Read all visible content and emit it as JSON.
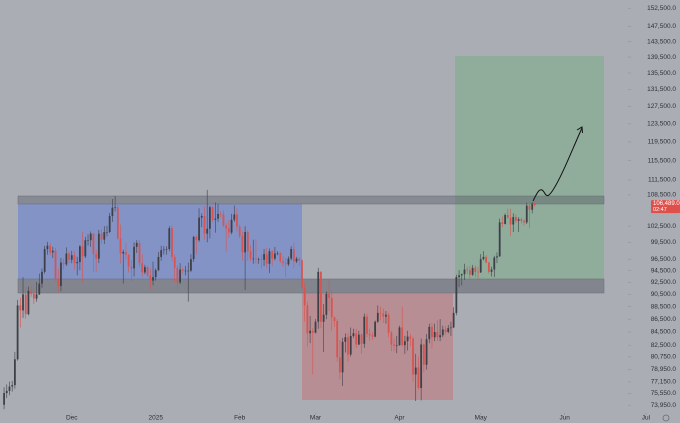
{
  "chart_data": {
    "type": "candlestick",
    "log_scale": true,
    "grid": false,
    "up_color": "#3e4048",
    "down_color": "#d9534f",
    "xlim": [
      -1.5,
      238.5
    ],
    "xticks": [
      {
        "value": 25,
        "label": "Dec"
      },
      {
        "value": 56,
        "label": "2025"
      },
      {
        "value": 87,
        "label": "Feb"
      },
      {
        "value": 115,
        "label": "Mar"
      },
      {
        "value": 146,
        "label": "Apr"
      },
      {
        "value": 176,
        "label": "May"
      },
      {
        "value": 207,
        "label": "Jun"
      },
      {
        "value": 237,
        "label": "Jul"
      }
    ],
    "ylim": [
      72900,
      154800
    ],
    "yticks": [
      {
        "value": 152500,
        "label": "152,500.0"
      },
      {
        "value": 147500,
        "label": "147,500.0"
      },
      {
        "value": 143500,
        "label": "143,500.0"
      },
      {
        "value": 139500,
        "label": "139,500.0"
      },
      {
        "value": 135500,
        "label": "135,500.0"
      },
      {
        "value": 131500,
        "label": "131,500.0"
      },
      {
        "value": 127500,
        "label": "127,500.0"
      },
      {
        "value": 123500,
        "label": "123,500.0"
      },
      {
        "value": 119500,
        "label": "119,500.0"
      },
      {
        "value": 115500,
        "label": "115,500.0"
      },
      {
        "value": 111500,
        "label": "111,500.0"
      },
      {
        "value": 108500,
        "label": "108,500.0"
      },
      {
        "value": 102500,
        "label": "102,500.0"
      },
      {
        "value": 99500,
        "label": "99,500.0"
      },
      {
        "value": 96500,
        "label": "96,500.0"
      },
      {
        "value": 94500,
        "label": "94,500.0"
      },
      {
        "value": 92500,
        "label": "92,500.0"
      },
      {
        "value": 90500,
        "label": "90,500.0"
      },
      {
        "value": 88500,
        "label": "88,500.0"
      },
      {
        "value": 86500,
        "label": "86,500.0"
      },
      {
        "value": 84500,
        "label": "84,500.0"
      },
      {
        "value": 82500,
        "label": "82,500.0"
      },
      {
        "value": 80750,
        "label": "80,750.0"
      },
      {
        "value": 78950,
        "label": "78,950.0"
      },
      {
        "value": 77150,
        "label": "77,150.0"
      },
      {
        "value": 75550,
        "label": "75,550.0"
      },
      {
        "value": 73950,
        "label": "73,950.0"
      }
    ],
    "last_price": {
      "value": 106489,
      "label": "106,489.0"
    },
    "countdown": "02:47",
    "open": [
      74000,
      75600,
      75900,
      76500,
      76700,
      80400,
      88700,
      87900,
      90500,
      87300,
      91100,
      90600,
      89800,
      90500,
      92300,
      94300,
      98300,
      98900,
      97700,
      98000,
      93000,
      91900,
      95900,
      95600,
      97500,
      96400,
      97200,
      95800,
      96000,
      98800,
      97000,
      99900,
      99900,
      101100,
      97400,
      96600,
      101100,
      100000,
      101400,
      101400,
      104400,
      106000,
      106100,
      100200,
      97500,
      97800,
      97300,
      95200,
      94900,
      98700,
      99400,
      95800,
      94200,
      95100,
      93700,
      92800,
      93400,
      94600,
      96900,
      98100,
      98200,
      98300,
      102100,
      96900,
      95000,
      92500,
      94700,
      94500,
      94500,
      94500,
      96500,
      100500,
      99900,
      104100,
      104400,
      101100,
      102000,
      106100,
      103700,
      103900,
      104800,
      104700,
      102600,
      102100,
      101300,
      103700,
      104700,
      102400,
      100600,
      97700,
      101400,
      97900,
      96600,
      96600,
      96500,
      96500,
      96400,
      97400,
      95700,
      97900,
      96600,
      97500,
      97600,
      96100,
      95800,
      95600,
      96600,
      98300,
      96100,
      96600,
      96300,
      91600,
      88700,
      84300,
      84700,
      84400,
      86100,
      94300,
      86100,
      87200,
      90600,
      89900,
      86800,
      86200,
      80700,
      78500,
      83000,
      83700,
      81100,
      83900,
      84300,
      82600,
      84100,
      82700,
      86900,
      84200,
      84000,
      83800,
      86100,
      87500,
      87400,
      86900,
      87200,
      84400,
      82600,
      82400,
      82500,
      85200,
      82500,
      83100,
      83800,
      83500,
      78200,
      79200,
      76300,
      82600,
      79600,
      83400,
      85300,
      83700,
      84500,
      83700,
      84000,
      84900,
      84500,
      85100,
      85200,
      87500,
      93400,
      93700,
      93900,
      94700,
      94600,
      93800,
      95000,
      94300,
      94200,
      96500,
      96900,
      95900,
      94300,
      94700,
      96800,
      97000,
      103200,
      102900,
      104600,
      104100,
      102800,
      104200,
      103500,
      103800,
      103500,
      103200,
      106400,
      105600,
      106800
    ],
    "high": [
      76400,
      76800,
      77200,
      77300,
      81500,
      89600,
      89900,
      93400,
      91800,
      91800,
      91900,
      91600,
      92600,
      94000,
      94900,
      98900,
      99600,
      99400,
      98700,
      98500,
      94900,
      96700,
      96600,
      98600,
      97800,
      98000,
      98000,
      96900,
      99000,
      101500,
      100500,
      101000,
      101500,
      101200,
      98200,
      101800,
      101900,
      102500,
      102600,
      105000,
      107700,
      108300,
      106500,
      102800,
      98200,
      99500,
      97400,
      96400,
      99500,
      99900,
      99900,
      97400,
      95500,
      95300,
      94900,
      96100,
      94900,
      97800,
      98900,
      98800,
      98800,
      102500,
      102700,
      97300,
      95400,
      95800,
      95000,
      95300,
      95900,
      97400,
      100700,
      100800,
      105900,
      104900,
      106300,
      109500,
      106400,
      106300,
      107000,
      106800,
      105300,
      105500,
      103100,
      103700,
      104800,
      106400,
      106000,
      102800,
      101500,
      102500,
      101700,
      99000,
      100000,
      100100,
      96800,
      97300,
      98300,
      98500,
      98400,
      98100,
      98700,
      97900,
      97700,
      97000,
      96700,
      97000,
      98800,
      99500,
      96900,
      96800,
      96500,
      92500,
      89300,
      87000,
      85100,
      86500,
      95000,
      94400,
      88900,
      91000,
      92800,
      91200,
      86900,
      86500,
      83300,
      83600,
      84300,
      84300,
      85200,
      85000,
      85000,
      84700,
      84300,
      87400,
      87400,
      85000,
      84500,
      86300,
      88700,
      88500,
      88200,
      87800,
      87500,
      84700,
      83500,
      83900,
      85500,
      88500,
      83900,
      84700,
      84200,
      83800,
      81200,
      80800,
      83500,
      82700,
      84200,
      85800,
      85900,
      85800,
      86400,
      86500,
      85500,
      85400,
      85600,
      86100,
      88400,
      93800,
      94600,
      94000,
      95700,
      95200,
      95300,
      95500,
      95400,
      95200,
      97400,
      97900,
      97200,
      96000,
      95200,
      97100,
      97700,
      103900,
      104300,
      104900,
      105800,
      105800,
      104900,
      104700,
      104200,
      104100,
      103800,
      107000,
      107100,
      107100,
      107200
    ],
    "low": [
      73400,
      74900,
      75300,
      75800,
      76200,
      80200,
      85200,
      86700,
      86600,
      87100,
      90100,
      88900,
      89300,
      90400,
      91600,
      94000,
      97300,
      97200,
      96700,
      92700,
      90900,
      91000,
      94700,
      95300,
      95800,
      95800,
      94700,
      93700,
      94600,
      92500,
      96700,
      98900,
      98700,
      94300,
      94300,
      95800,
      99300,
      99200,
      100600,
      101200,
      103300,
      105300,
      100000,
      95700,
      92300,
      96500,
      94200,
      92500,
      93500,
      97600,
      95200,
      93500,
      93900,
      93400,
      91300,
      92000,
      92800,
      94400,
      96200,
      97300,
      97300,
      97900,
      96200,
      92500,
      91300,
      92200,
      93900,
      93700,
      89300,
      94300,
      96000,
      97400,
      99600,
      102300,
      100000,
      99500,
      100200,
      103300,
      101300,
      103300,
      104100,
      102300,
      97800,
      100300,
      101000,
      103300,
      101500,
      100300,
      96300,
      91200,
      96200,
      96100,
      95700,
      95700,
      95700,
      94800,
      95300,
      94900,
      94100,
      95300,
      96300,
      97200,
      95900,
      95100,
      93400,
      95300,
      96300,
      94900,
      95800,
      95300,
      91200,
      86100,
      82300,
      82800,
      78200,
      84300,
      85000,
      85100,
      81500,
      86500,
      87800,
      84700,
      85300,
      80100,
      77500,
      76600,
      81400,
      80000,
      80800,
      83600,
      82100,
      82500,
      81200,
      82100,
      83700,
      83200,
      83300,
      83700,
      85900,
      86300,
      85900,
      85800,
      83700,
      81600,
      81600,
      81300,
      82400,
      82300,
      81200,
      81700,
      82400,
      77200,
      74500,
      76100,
      74600,
      78500,
      78900,
      82800,
      82000,
      83100,
      83100,
      83100,
      83700,
      84100,
      84300,
      83900,
      85100,
      87100,
      91700,
      92000,
      92900,
      93900,
      93100,
      93600,
      93400,
      92900,
      94100,
      96300,
      95800,
      94000,
      93500,
      93400,
      95800,
      96900,
      102300,
      102800,
      103900,
      100700,
      101400,
      103100,
      101400,
      103000,
      102600,
      102900,
      102100,
      104900,
      106200
    ],
    "close": [
      75600,
      75900,
      76500,
      76700,
      80400,
      88700,
      87900,
      90500,
      87300,
      91100,
      90600,
      89800,
      90500,
      92300,
      94300,
      98300,
      98900,
      97700,
      98000,
      93000,
      91900,
      95900,
      95600,
      97500,
      96400,
      97200,
      95800,
      96000,
      98800,
      97000,
      99900,
      99900,
      101100,
      97400,
      96600,
      101100,
      100000,
      101400,
      101400,
      104400,
      106000,
      106100,
      100200,
      97500,
      97800,
      97300,
      95200,
      94900,
      98700,
      99400,
      95800,
      94200,
      95100,
      93700,
      92800,
      93400,
      94600,
      96900,
      98100,
      98200,
      98300,
      102100,
      96900,
      95000,
      92500,
      94700,
      94500,
      94500,
      94500,
      96500,
      100500,
      99900,
      104100,
      104400,
      101100,
      102000,
      106100,
      103700,
      103900,
      104800,
      104700,
      102600,
      102100,
      101300,
      103700,
      104700,
      102400,
      100600,
      97700,
      101400,
      97900,
      96600,
      96600,
      96500,
      96500,
      96400,
      97400,
      95700,
      97900,
      96600,
      97500,
      97600,
      96100,
      95800,
      95600,
      96600,
      98300,
      96100,
      96600,
      96300,
      91600,
      88700,
      84300,
      84700,
      84400,
      86100,
      94300,
      86100,
      87200,
      90600,
      89900,
      86800,
      86200,
      80700,
      78500,
      83000,
      83700,
      81100,
      83900,
      84300,
      82600,
      84100,
      82700,
      86900,
      84200,
      84000,
      83800,
      86100,
      87500,
      87400,
      86900,
      87200,
      84400,
      82600,
      82400,
      82500,
      85200,
      82500,
      83100,
      83800,
      83500,
      78200,
      79200,
      76300,
      82600,
      79600,
      83400,
      85300,
      83700,
      84500,
      83700,
      84000,
      84900,
      84500,
      85100,
      85200,
      87500,
      93400,
      93700,
      93900,
      94700,
      94600,
      93800,
      95000,
      94300,
      94200,
      96500,
      96900,
      95900,
      94300,
      94700,
      96800,
      97000,
      103200,
      102900,
      104600,
      104100,
      102800,
      104200,
      103500,
      103800,
      103500,
      103200,
      106400,
      105600,
      106800,
      106500
    ]
  }
}
